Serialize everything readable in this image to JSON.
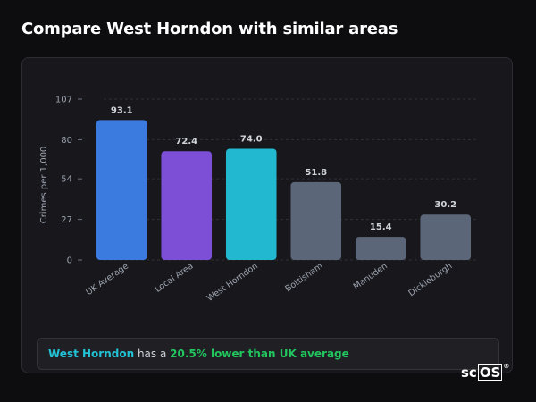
{
  "page": {
    "title": "Compare West Horndon with similar areas"
  },
  "summary": {
    "area_name": "West Horndon",
    "connector": " has a ",
    "difference": "20.5% lower than UK average"
  },
  "logo": {
    "text_sc": "sc",
    "text_os": "OS",
    "reg": "®"
  },
  "colors": {
    "uk_average": "#3b7be0",
    "local_area": "#7c4fd6",
    "target_area": "#22b8cf",
    "comparison": "#5c6679",
    "summary_area": "#22c2d4",
    "summary_diff": "#22c55e"
  },
  "chart_data": {
    "type": "bar",
    "title": "",
    "ylabel": "Crimes per 1,000",
    "xlabel": "",
    "ylim": [
      0,
      107
    ],
    "yticks": [
      0,
      27,
      54,
      80,
      107
    ],
    "grid": true,
    "categories": [
      "UK Average",
      "Local Area",
      "West Horndon",
      "Bottisham",
      "Manuden",
      "Dickleburgh"
    ],
    "values": [
      93.1,
      72.4,
      74.0,
      51.8,
      15.4,
      30.2
    ],
    "value_labels": [
      "93.1",
      "72.4",
      "74.0",
      "51.8",
      "15.4",
      "30.2"
    ],
    "bar_colors": [
      "#3b7be0",
      "#7c4fd6",
      "#22b8cf",
      "#5c6679",
      "#5c6679",
      "#5c6679"
    ]
  }
}
